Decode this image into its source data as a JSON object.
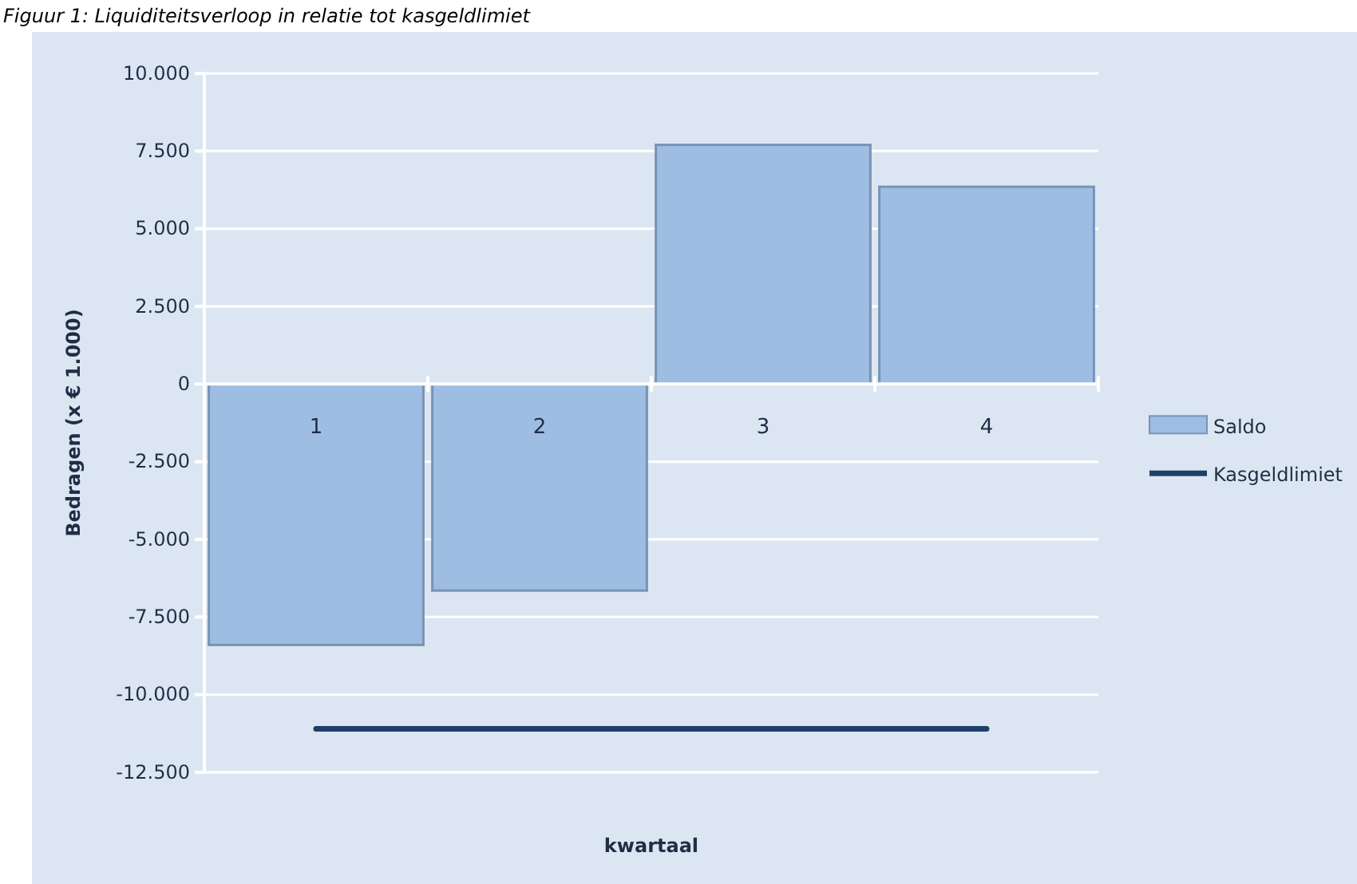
{
  "chart_data": {
    "type": "bar",
    "title": "Figuur 1: Liquiditeitsverloop in relatie tot kasgeldlimiet",
    "xlabel": "kwartaal",
    "ylabel": "Bedragen (x € 1.000)",
    "categories": [
      "1",
      "2",
      "3",
      "4"
    ],
    "series": [
      {
        "name": "Saldo",
        "color": "#9dbde3",
        "values": [
          -8400,
          -6650,
          7700,
          6350
        ]
      },
      {
        "name": "Kasgeldlimiet",
        "type": "line",
        "color": "#1f3f6a",
        "values": [
          -11100,
          -11100,
          -11100,
          -11100
        ]
      }
    ],
    "ylim": [
      -12500,
      10000
    ],
    "yticks": [
      {
        "value": 10000,
        "label": "10.000"
      },
      {
        "value": 7500,
        "label": "7.500"
      },
      {
        "value": 5000,
        "label": "5.000"
      },
      {
        "value": 2500,
        "label": "2.500"
      },
      0,
      {
        "value": -2500,
        "label": "-2.500"
      },
      {
        "value": -5000,
        "label": "-5.000"
      },
      {
        "value": -7500,
        "label": "-7.500"
      },
      {
        "value": -10000,
        "label": "-10.000"
      },
      {
        "value": -12500,
        "label": "-12.500"
      }
    ],
    "grid": "y",
    "legend": "right",
    "line_style": "solid",
    "marker": "none"
  }
}
